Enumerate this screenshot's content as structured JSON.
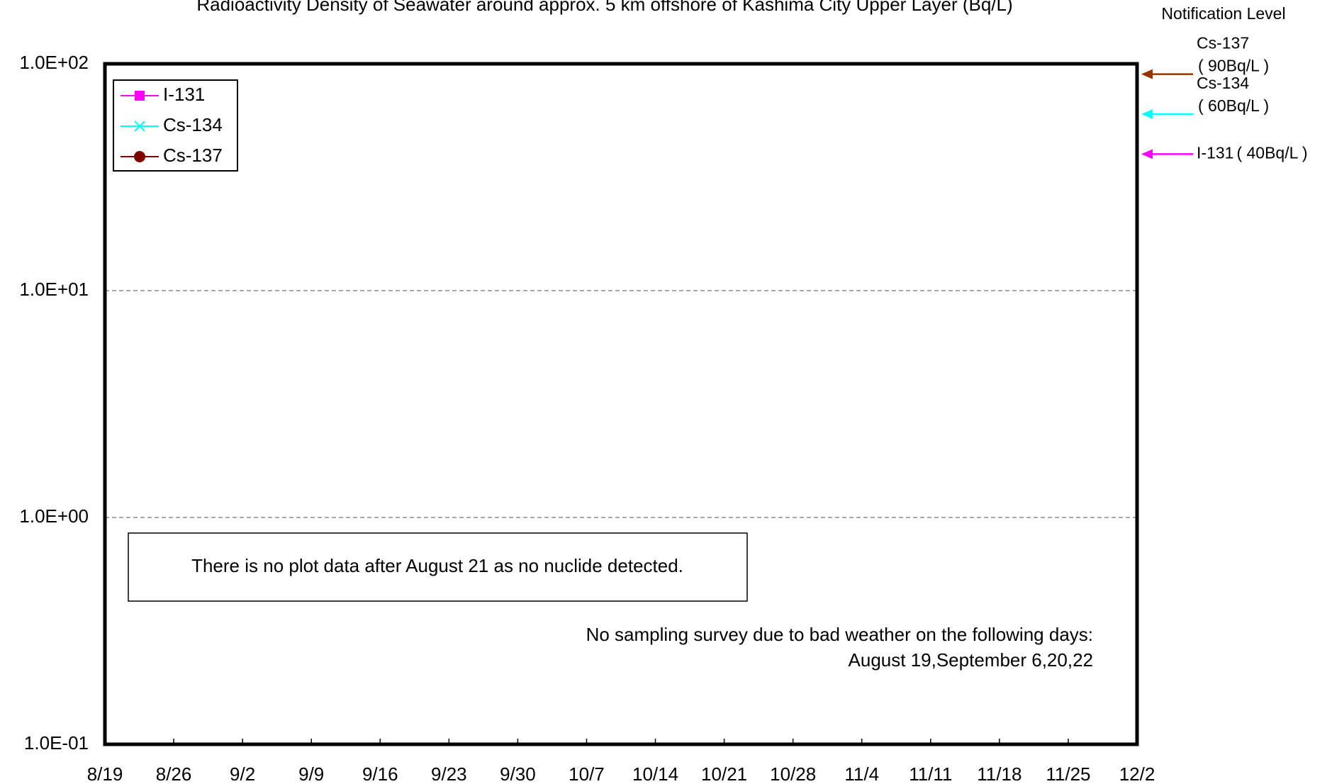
{
  "chart_data": {
    "type": "line",
    "title": "Radioactivity Density of Seawater around approx. 5 km offshore of Kashima City Upper Layer (Bq/L)",
    "categories": [
      "8/19",
      "8/26",
      "9/2",
      "9/9",
      "9/16",
      "9/23",
      "9/30",
      "10/7",
      "10/14",
      "10/21",
      "10/28",
      "11/4",
      "11/11",
      "11/18",
      "11/25",
      "12/2"
    ],
    "series": [
      {
        "name": "I-131",
        "color": "#ff00ff",
        "marker": "square",
        "values": [
          null,
          null,
          null,
          null,
          null,
          null,
          null,
          null,
          null,
          null,
          null,
          null,
          null,
          null,
          null,
          null
        ]
      },
      {
        "name": "Cs-134",
        "color": "#00ffff",
        "marker": "x",
        "values": [
          null,
          null,
          null,
          null,
          null,
          null,
          null,
          null,
          null,
          null,
          null,
          null,
          null,
          null,
          null,
          null
        ]
      },
      {
        "name": "Cs-137",
        "color": "#800000",
        "marker": "circle",
        "values": [
          null,
          null,
          null,
          null,
          null,
          null,
          null,
          null,
          null,
          null,
          null,
          null,
          null,
          null,
          null,
          null
        ]
      }
    ],
    "log_scale": true,
    "ylim": [
      0.1,
      100
    ],
    "yticks": [
      {
        "value": 0.1,
        "label": "1.0E-01"
      },
      {
        "value": 1,
        "label": "1.0E+00"
      },
      {
        "value": 10,
        "label": "1.0E+01"
      },
      {
        "value": 100,
        "label": "1.0E+02"
      }
    ],
    "grid": true,
    "legend": "upper left",
    "notification_title": "Notification Level",
    "notification_levels": [
      {
        "name": "Cs-137",
        "label": "( 90Bq/L )",
        "value": 90,
        "color": "#993300"
      },
      {
        "name": "Cs-134",
        "label": "( 60Bq/L )",
        "value": 60,
        "color": "#00ffff"
      },
      {
        "name": "I-131",
        "label": "( 40Bq/L )",
        "value": 40,
        "color": "#ff00ff"
      }
    ],
    "annotations": [
      "There is no plot data after August 21 as no nuclide detected.",
      "No sampling survey due to bad weather on the following days:",
      "August 19,September 6,20,22"
    ]
  }
}
